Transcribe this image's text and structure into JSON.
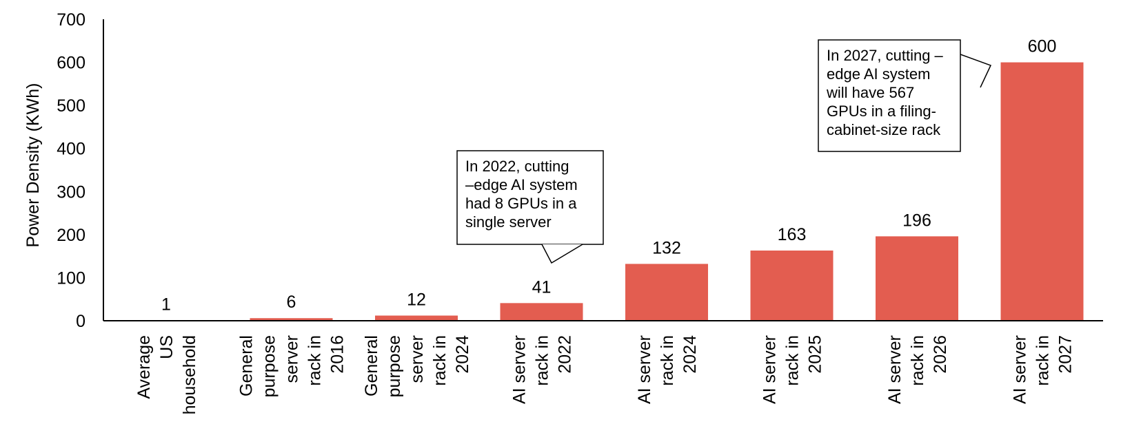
{
  "chart_data": {
    "type": "bar",
    "categories": [
      [
        "Average",
        "US",
        "household"
      ],
      [
        "General",
        "purpose",
        "server",
        "rack in",
        "2016"
      ],
      [
        "General",
        "purpose",
        "server",
        "rack in",
        "2024"
      ],
      [
        "AI server",
        "rack in",
        "2022"
      ],
      [
        "AI server",
        "rack in",
        "2024"
      ],
      [
        "AI server",
        "rack in",
        "2025"
      ],
      [
        "AI server",
        "rack in",
        "2026"
      ],
      [
        "AI server",
        "rack in",
        "2027"
      ]
    ],
    "values": [
      1,
      6,
      12,
      41,
      132,
      163,
      196,
      600
    ],
    "data_labels": [
      "1",
      "6",
      "12",
      "41",
      "132",
      "163",
      "196",
      "600"
    ],
    "ylabel": "Power Density (KWh)",
    "xlabel": "",
    "ylim": [
      0,
      700
    ],
    "yticks": [
      0,
      100,
      200,
      300,
      400,
      500,
      600,
      700
    ],
    "grid": false,
    "legend": "none",
    "bar_color": "#E35D50",
    "annotations": [
      {
        "target_category_index": 3,
        "lines": [
          "In 2022, cutting",
          "–edge AI system",
          "had 8 GPUs in a",
          "single server"
        ]
      },
      {
        "target_category_index": 7,
        "lines": [
          "In 2027, cutting –",
          "edge AI system",
          "will have 567",
          "GPUs in a filing-",
          "cabinet-size rack"
        ]
      }
    ]
  }
}
